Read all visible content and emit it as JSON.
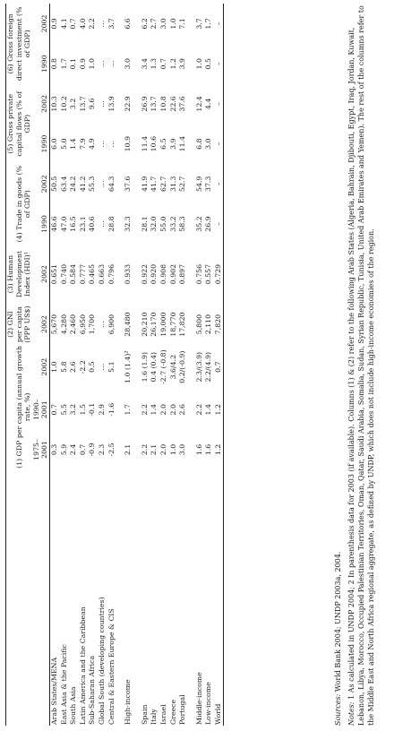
{
  "headers": {
    "groups": [
      {
        "id": "g1",
        "label": "(1) GDP per capita (annual growth rate, %)"
      },
      {
        "id": "g2",
        "label": "(2) GNI per capita (PPP US$)"
      },
      {
        "id": "g3",
        "label": "(3) Human Development Index (HDI)¹"
      },
      {
        "id": "g4",
        "label": "(4) Trade in goods (% of GDP)"
      },
      {
        "id": "g5",
        "label": "(5) Gross private capital flows (% of GDP)"
      },
      {
        "id": "g6",
        "label": "(6) Gross foreign direct investment (% of GDP)"
      }
    ],
    "subs": [
      "1975–2001",
      "1990–2001",
      "2002",
      "2002",
      "2002",
      "1990",
      "2002",
      "1990",
      "2002",
      "1990",
      "2002"
    ]
  },
  "rows": [
    {
      "label": "Arab States/MENA",
      "v": [
        "0.3",
        "0.7",
        "1.0",
        "5,670",
        "0.651",
        "46.6",
        "50.5",
        "6.0",
        "10.3",
        "0.8",
        "0.9"
      ]
    },
    {
      "label": "East Asia & the Pacific",
      "v": [
        "5.9",
        "5.5",
        "5.8",
        "4,280",
        "0.740",
        "47.0",
        "63.4",
        "5.0",
        "10.2",
        "1.7",
        "4.1"
      ]
    },
    {
      "label": "South Asia",
      "v": [
        "2.4",
        "3.2",
        "2.6",
        "2,460",
        "0.584",
        "16.5",
        "24.2",
        "1.4",
        "3.2",
        "0.1",
        "0.7"
      ]
    },
    {
      "label": "Latin America and the Caribbean",
      "v": [
        "0.7",
        "1.5",
        "-2.2",
        "6,950",
        "0.777",
        "23.1",
        "41.2",
        "7.9",
        "13.7",
        "0.9",
        "4.0"
      ]
    },
    {
      "label": "Sub-Saharan Africa",
      "v": [
        "-0.9",
        "-0.1",
        "0.5",
        "1,700",
        "0.465",
        "40.6",
        "55.3",
        "4.9",
        "9.6",
        "1.0",
        "2.2"
      ]
    },
    {
      "label": "Global South (developing countries)",
      "v": [
        "2.3",
        "2.9",
        "…",
        "…",
        "0.663",
        "…",
        "…",
        "…",
        "…",
        "…",
        "…"
      ]
    },
    {
      "label": "Central & Eastern Europe & CIS",
      "v": [
        "-2.5",
        "-1.6",
        "5.1",
        "6,900",
        "0.796",
        "28.8",
        "64.3",
        "…",
        "13.9",
        "…",
        "3.7"
      ]
    },
    {
      "label": "High-income",
      "v": [
        "2.1",
        "1.7",
        "1.0 (1.4)²",
        "28,480",
        "0.933",
        "32.3",
        "37.6",
        "10.9",
        "22.9",
        "3.0",
        "6.6"
      ]
    },
    {
      "label": "Spain",
      "v": [
        "2.2",
        "2.2",
        "1.6 (1.9)",
        "20,210",
        "0.922",
        "28.1",
        "41.9",
        "11.4",
        "26.9",
        "3.4",
        "6.2"
      ]
    },
    {
      "label": "Italy",
      "v": [
        "2.1",
        "1.4",
        "0.4 (0.4)",
        "26,170",
        "0.920",
        "32.0",
        "41.7",
        "10.6",
        "13.7",
        "1.3",
        "2.7"
      ]
    },
    {
      "label": "Israel",
      "v": [
        "2.0",
        "2.0",
        "-2.7 (-0.8)",
        "19,000",
        "0.908",
        "55.0",
        "62.7",
        "6.5",
        "10.8",
        "0.7",
        "3.0"
      ]
    },
    {
      "label": "Greece",
      "v": [
        "1.0",
        "2.0",
        "3.6/4.2",
        "18,770",
        "0.902",
        "33.2",
        "31.3",
        "3.9",
        "22.6",
        "1.2",
        "1.0"
      ]
    },
    {
      "label": "Portugal",
      "v": [
        "3.0",
        "2.6",
        "0.2/(-0.9)",
        "17,820",
        "0.897",
        "58.3",
        "52.7",
        "11.4",
        "37.6",
        "3.9",
        "7.1"
      ]
    },
    {
      "label": "Middle-income",
      "v": [
        "1.6",
        "2.2",
        "2.3/(3.9)",
        "5,800",
        "0.756",
        "35.2",
        "54.9",
        "6.8",
        "12.4",
        "1.0",
        "3.7"
      ]
    },
    {
      "label": "Low-income",
      "v": [
        "1.6",
        "1.4",
        "2.2/(4.9)",
        "2,110",
        "0.557",
        "26.9",
        "37.3",
        "3.0",
        "4.4",
        "0.5",
        "1.7"
      ]
    },
    {
      "label": "World",
      "v": [
        "1.2",
        "1.2",
        "0.7",
        "7,820",
        "0.729",
        "–",
        "–",
        "–",
        "–",
        "–",
        "–"
      ]
    }
  ],
  "sources": {
    "label": "Sources:",
    "text": " World Bank 2004; UNDP 2003a, 2004."
  },
  "notes": {
    "label": "Notes:",
    "text": " 1 As calculated in UNDP 2004;   2 In parenthesis data for 2003 (if available).   Columns (1) & (2) refer to the following Arab States (Algeria, Bahrain, Djibouti, Egypt, Iraq, Jordan, Kuwait, Lebanon, Libya, Morocco, Occupied Palestinian Territories, Oman, Qatar, Saudi Arabia, Somalia, Sudan, Syrian Republic, Tunisia, United Arab Emirates and Yemen). The rest of the columns refer to the Middle East and North Africa regional aggregate, as defined by UNDP, which does not include high-income economies of the region."
  }
}
